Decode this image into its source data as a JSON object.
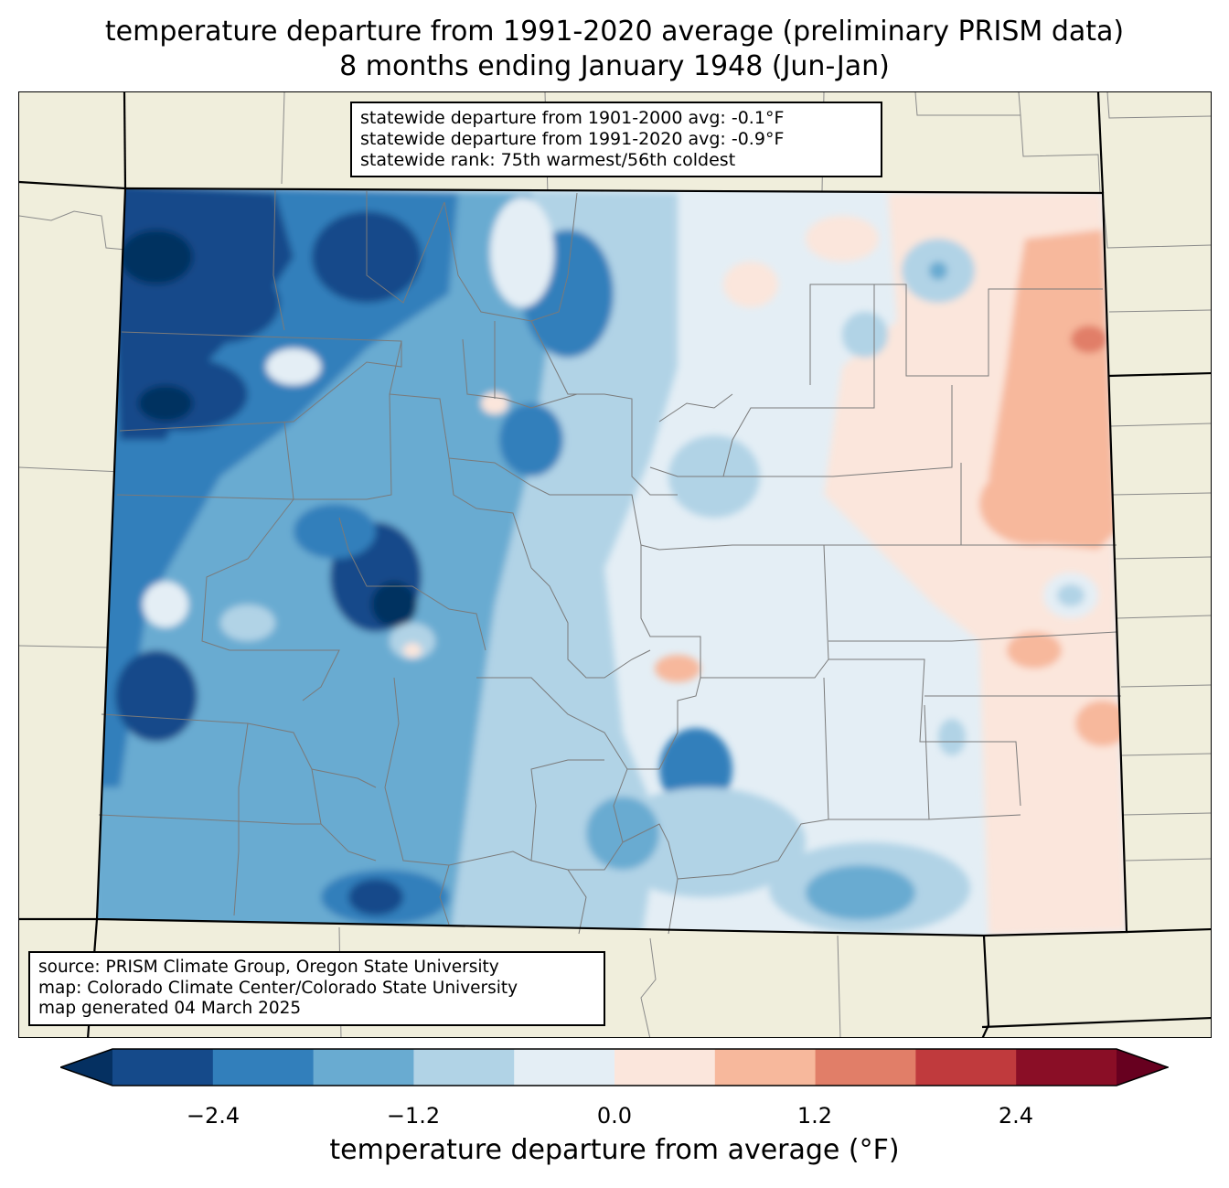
{
  "title": {
    "line1": "temperature departure from 1991-2020 average (preliminary PRISM data)",
    "line2": "8 months ending January 1948 (Jun-Jan)"
  },
  "stats_box": {
    "line1": "statewide departure from 1901-2000 avg: -0.1°F",
    "line2": "statewide departure from 1991-2020 avg: -0.9°F",
    "line3": "statewide rank: 75th warmest/56th coldest"
  },
  "source_box": {
    "line1": "source: PRISM Climate Group, Oregon State University",
    "line2": "map: Colorado Climate Center/Colorado State University",
    "line3": "map generated 04 March 2025"
  },
  "colorbar": {
    "label": "temperature departure from average (°F)",
    "ticks": [
      "−2.4",
      "−1.2",
      "0.0",
      "1.2",
      "2.4"
    ],
    "bins": [
      {
        "range": "< -3.0",
        "color": "#053061"
      },
      {
        "range": "-3.0 to -2.4",
        "color": "#154a8a"
      },
      {
        "range": "-2.4 to -1.8",
        "color": "#327fbb"
      },
      {
        "range": "-1.8 to -1.2",
        "color": "#69abd1"
      },
      {
        "range": "-1.2 to -0.6",
        "color": "#b1d3e6"
      },
      {
        "range": "-0.6 to 0.0",
        "color": "#e4eef5"
      },
      {
        "range": "0.0 to 0.6",
        "color": "#fbe6dc"
      },
      {
        "range": "0.6 to 1.2",
        "color": "#f7b89c"
      },
      {
        "range": "1.2 to 1.8",
        "color": "#e17e68"
      },
      {
        "range": "1.8 to 2.4",
        "color": "#c03a3d"
      },
      {
        "range": "2.4 to 3.0",
        "color": "#8a0e26"
      },
      {
        "range": "> 3.0",
        "color": "#67001f"
      }
    ]
  },
  "colors": {
    "land_background": "#f0eedc",
    "county_lines": "#808080",
    "state_lines": "#000000"
  }
}
